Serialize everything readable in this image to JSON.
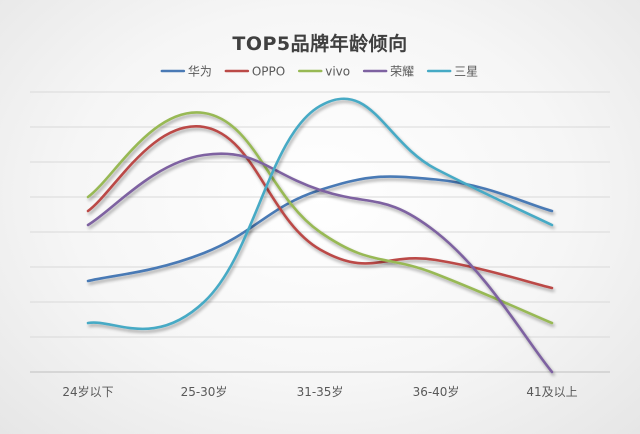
{
  "chart_data": {
    "type": "line",
    "title": "TOP5品牌年龄倾向",
    "categories": [
      "24岁以下",
      "25-30岁",
      "31-35岁",
      "36-40岁",
      "41及以上"
    ],
    "xlabel": "",
    "ylabel": "",
    "ylim": [
      0,
      8
    ],
    "grid": true,
    "legend_position": "top",
    "series": [
      {
        "name": "华为",
        "color": "#4a7ab5",
        "values": [
          2.6,
          3.4,
          5.2,
          5.5,
          4.6
        ]
      },
      {
        "name": "OPPO",
        "color": "#bb4a47",
        "values": [
          4.6,
          7.0,
          3.5,
          3.2,
          2.4
        ]
      },
      {
        "name": "vivo",
        "color": "#98b954",
        "values": [
          5.0,
          7.4,
          4.0,
          2.8,
          1.4
        ]
      },
      {
        "name": "荣耀",
        "color": "#7e62a1",
        "values": [
          4.2,
          6.2,
          5.2,
          4.0,
          0.0
        ]
      },
      {
        "name": "三星",
        "color": "#46aac5",
        "values": [
          1.4,
          2.0,
          7.6,
          5.8,
          4.2
        ]
      }
    ]
  }
}
